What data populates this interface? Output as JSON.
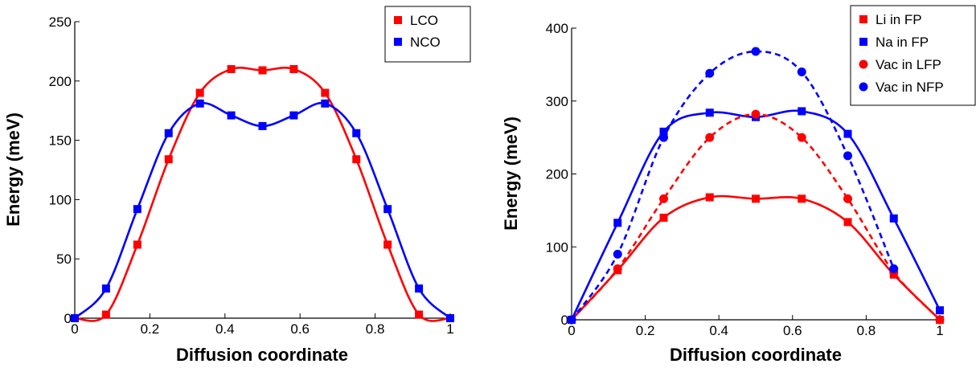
{
  "chart_data": [
    {
      "type": "line",
      "xlabel": "Diffusion coordinate",
      "ylabel": "Energy (meV)",
      "xlim": [
        0,
        1
      ],
      "ylim": [
        0,
        250
      ],
      "xticks": [
        0,
        0.2,
        0.4,
        0.6,
        0.8,
        1
      ],
      "xtick_labels": [
        "0",
        "0.2",
        "0.4",
        "0.6",
        "0.8",
        "1"
      ],
      "yticks": [
        0,
        50,
        100,
        150,
        200,
        250
      ],
      "ytick_labels": [
        "0",
        "50",
        "100",
        "150",
        "200",
        "250"
      ],
      "legend_position": "top-right",
      "grid": false,
      "series": [
        {
          "name": "LCO",
          "color": "#ff0000",
          "marker": "square",
          "line": "solid",
          "x": [
            0,
            0.0833,
            0.1667,
            0.25,
            0.3333,
            0.4167,
            0.5,
            0.5833,
            0.6667,
            0.75,
            0.8333,
            0.9167,
            1
          ],
          "values": [
            0,
            3,
            62,
            134,
            190,
            210,
            209,
            210,
            190,
            134,
            62,
            3,
            0
          ]
        },
        {
          "name": "NCO",
          "color": "#0000ff",
          "marker": "square",
          "line": "solid",
          "x": [
            0,
            0.0833,
            0.1667,
            0.25,
            0.3333,
            0.4167,
            0.5,
            0.5833,
            0.6667,
            0.75,
            0.8333,
            0.9167,
            1
          ],
          "values": [
            0,
            25,
            92,
            156,
            181,
            171,
            162,
            171,
            181,
            156,
            92,
            25,
            0
          ]
        }
      ]
    },
    {
      "type": "line",
      "xlabel": "Diffusion coordinate",
      "ylabel": "Energy (meV)",
      "xlim": [
        0,
        1
      ],
      "ylim": [
        0,
        400
      ],
      "xticks": [
        0,
        0.2,
        0.4,
        0.6,
        0.8,
        1
      ],
      "xtick_labels": [
        "0",
        "0.2",
        "0.4",
        "0.6",
        "0.8",
        "1"
      ],
      "yticks": [
        0,
        100,
        200,
        300,
        400
      ],
      "ytick_labels": [
        "0",
        "100",
        "200",
        "300",
        "400"
      ],
      "legend_position": "top-right",
      "grid": false,
      "series": [
        {
          "name": "Li in FP",
          "color": "#ff0000",
          "marker": "square",
          "line": "solid",
          "x": [
            0,
            0.125,
            0.25,
            0.375,
            0.5,
            0.625,
            0.75,
            0.875,
            1
          ],
          "values": [
            0,
            68,
            140,
            168,
            166,
            166,
            134,
            62,
            0
          ]
        },
        {
          "name": "Na in FP",
          "color": "#0000ff",
          "marker": "square",
          "line": "solid",
          "x": [
            0,
            0.125,
            0.25,
            0.375,
            0.5,
            0.625,
            0.75,
            0.875,
            1
          ],
          "values": [
            0,
            133,
            258,
            284,
            278,
            286,
            255,
            139,
            13
          ]
        },
        {
          "name": "Vac in LFP",
          "color": "#ff0000",
          "marker": "circle",
          "line": "dashed",
          "x": [
            0,
            0.125,
            0.25,
            0.375,
            0.5,
            0.625,
            0.75,
            0.875,
            1
          ],
          "values": [
            0,
            70,
            166,
            250,
            282,
            250,
            166,
            65,
            0
          ]
        },
        {
          "name": "Vac in NFP",
          "color": "#0000ff",
          "marker": "circle",
          "line": "dashed",
          "x": [
            0,
            0.125,
            0.25,
            0.375,
            0.5,
            0.625,
            0.75,
            0.875
          ],
          "values": [
            0,
            90,
            250,
            338,
            368,
            340,
            225,
            70
          ]
        }
      ]
    }
  ]
}
